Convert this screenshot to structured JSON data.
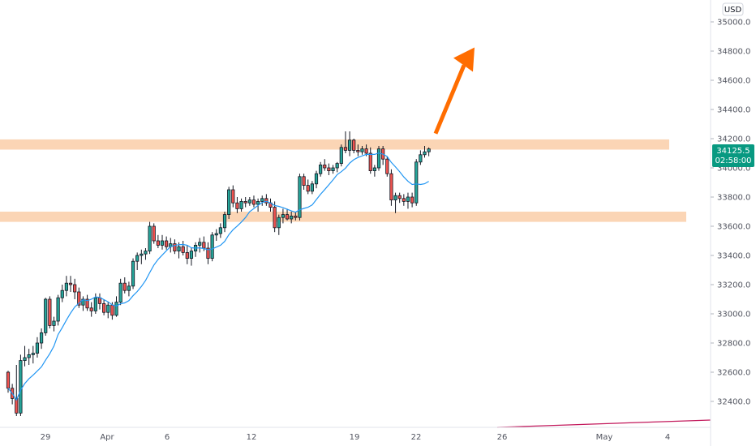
{
  "price_axis": {
    "currency": "USD",
    "ticks": [
      "35000.0",
      "34800.0",
      "34600.0",
      "34400.0",
      "34200.0",
      "34000.0",
      "33800.0",
      "33600.0",
      "33400.0",
      "33200.0",
      "33000.0",
      "32800.0",
      "32600.0",
      "32400.0"
    ],
    "last_price": "34125.5",
    "countdown": "02:58:00"
  },
  "time_axis": {
    "labels": [
      "29",
      "Apr",
      "6",
      "12",
      "19",
      "22",
      "26",
      "May",
      "4"
    ]
  },
  "colors": {
    "up": "#26a69a",
    "down": "#ef5350",
    "candle_stroke": "#131722",
    "ma_line": "#2196f3",
    "zone_fill": "#fbd5b5",
    "arrow": "#ff6d00",
    "price_badge": "#089981",
    "lower_line": "#c2185b"
  },
  "chart_data": {
    "type": "candlestick",
    "title": "",
    "ylim": [
      32250,
      35150
    ],
    "zones": [
      {
        "from": 34125,
        "to": 34195
      },
      {
        "from": 33630,
        "to": 33700
      }
    ],
    "projection_arrow": {
      "from_price": 34235,
      "to_price": 34825
    },
    "candles": [
      [
        32600,
        32610,
        32460,
        32490
      ],
      [
        32490,
        32520,
        32380,
        32420
      ],
      [
        32420,
        32650,
        32300,
        32320
      ],
      [
        32320,
        32720,
        32300,
        32680
      ],
      [
        32680,
        32780,
        32640,
        32700
      ],
      [
        32700,
        32760,
        32650,
        32720
      ],
      [
        32720,
        32780,
        32660,
        32730
      ],
      [
        32730,
        32840,
        32700,
        32800
      ],
      [
        32800,
        32900,
        32760,
        32870
      ],
      [
        32870,
        33110,
        32850,
        33100
      ],
      [
        33100,
        33120,
        32900,
        32920
      ],
      [
        32920,
        32980,
        32880,
        32950
      ],
      [
        32950,
        33130,
        32920,
        33110
      ],
      [
        33110,
        33200,
        33080,
        33160
      ],
      [
        33160,
        33260,
        33120,
        33210
      ],
      [
        33210,
        33260,
        33150,
        33200
      ],
      [
        33200,
        33240,
        33100,
        33150
      ],
      [
        33150,
        33180,
        33040,
        33060
      ],
      [
        33060,
        33120,
        33020,
        33100
      ],
      [
        33100,
        33130,
        33020,
        33040
      ],
      [
        33040,
        33080,
        32980,
        33020
      ],
      [
        33020,
        33140,
        33000,
        33110
      ],
      [
        33110,
        33140,
        33030,
        33070
      ],
      [
        33070,
        33100,
        32990,
        33010
      ],
      [
        33010,
        33080,
        32970,
        33060
      ],
      [
        33060,
        33080,
        32960,
        32990
      ],
      [
        32990,
        33120,
        32980,
        33080
      ],
      [
        33080,
        33240,
        33060,
        33210
      ],
      [
        33210,
        33250,
        33140,
        33160
      ],
      [
        33160,
        33220,
        33120,
        33190
      ],
      [
        33190,
        33380,
        33170,
        33360
      ],
      [
        33360,
        33420,
        33300,
        33400
      ],
      [
        33400,
        33440,
        33340,
        33410
      ],
      [
        33410,
        33450,
        33370,
        33430
      ],
      [
        33430,
        33630,
        33410,
        33600
      ],
      [
        33600,
        33620,
        33480,
        33500
      ],
      [
        33500,
        33540,
        33450,
        33470
      ],
      [
        33470,
        33540,
        33440,
        33500
      ],
      [
        33500,
        33530,
        33440,
        33460
      ],
      [
        33460,
        33520,
        33420,
        33480
      ],
      [
        33480,
        33510,
        33410,
        33430
      ],
      [
        33430,
        33490,
        33380,
        33460
      ],
      [
        33460,
        33500,
        33400,
        33420
      ],
      [
        33420,
        33470,
        33340,
        33380
      ],
      [
        33380,
        33450,
        33330,
        33430
      ],
      [
        33430,
        33490,
        33390,
        33470
      ],
      [
        33470,
        33520,
        33420,
        33490
      ],
      [
        33490,
        33530,
        33430,
        33450
      ],
      [
        33450,
        33490,
        33340,
        33380
      ],
      [
        33380,
        33560,
        33360,
        33540
      ],
      [
        33540,
        33580,
        33500,
        33550
      ],
      [
        33550,
        33620,
        33520,
        33590
      ],
      [
        33590,
        33700,
        33560,
        33680
      ],
      [
        33680,
        33870,
        33650,
        33850
      ],
      [
        33850,
        33880,
        33730,
        33760
      ],
      [
        33760,
        33800,
        33690,
        33720
      ],
      [
        33720,
        33790,
        33700,
        33770
      ],
      [
        33770,
        33800,
        33730,
        33760
      ],
      [
        33760,
        33800,
        33740,
        33780
      ],
      [
        33780,
        33810,
        33730,
        33750
      ],
      [
        33750,
        33790,
        33700,
        33770
      ],
      [
        33770,
        33810,
        33740,
        33790
      ],
      [
        33790,
        33820,
        33740,
        33760
      ],
      [
        33760,
        33790,
        33700,
        33730
      ],
      [
        33730,
        33770,
        33560,
        33590
      ],
      [
        33590,
        33680,
        33540,
        33660
      ],
      [
        33660,
        33720,
        33620,
        33680
      ],
      [
        33680,
        33720,
        33640,
        33650
      ],
      [
        33650,
        33700,
        33620,
        33670
      ],
      [
        33670,
        33700,
        33640,
        33660
      ],
      [
        33660,
        33960,
        33640,
        33940
      ],
      [
        33940,
        33960,
        33850,
        33880
      ],
      [
        33880,
        33920,
        33820,
        33840
      ],
      [
        33840,
        33910,
        33820,
        33890
      ],
      [
        33890,
        33980,
        33860,
        33960
      ],
      [
        33960,
        34040,
        33940,
        34020
      ],
      [
        34020,
        34060,
        33980,
        34000
      ],
      [
        34000,
        34030,
        33950,
        33980
      ],
      [
        33980,
        34020,
        33960,
        34000
      ],
      [
        34000,
        34040,
        33970,
        34030
      ],
      [
        34030,
        34160,
        34010,
        34140
      ],
      [
        34140,
        34250,
        34100,
        34120
      ],
      [
        34120,
        34250,
        34080,
        34190
      ],
      [
        34190,
        34200,
        34100,
        34120
      ],
      [
        34120,
        34160,
        34080,
        34110
      ],
      [
        34110,
        34150,
        34090,
        34130
      ],
      [
        34130,
        34160,
        34080,
        34100
      ],
      [
        34100,
        34140,
        33960,
        33980
      ],
      [
        33980,
        34020,
        33940,
        34000
      ],
      [
        34000,
        34150,
        33980,
        34130
      ],
      [
        34130,
        34150,
        34020,
        34060
      ],
      [
        34060,
        34080,
        33940,
        33960
      ],
      [
        33960,
        33990,
        33740,
        33780
      ],
      [
        33780,
        33830,
        33690,
        33810
      ],
      [
        33810,
        33830,
        33760,
        33790
      ],
      [
        33790,
        33820,
        33740,
        33770
      ],
      [
        33770,
        33830,
        33720,
        33800
      ],
      [
        33800,
        33830,
        33730,
        33760
      ],
      [
        33760,
        34060,
        33740,
        34040
      ],
      [
        34040,
        34120,
        34020,
        34090
      ],
      [
        34090,
        34150,
        34070,
        34110
      ],
      [
        34110,
        34140,
        34080,
        34130
      ]
    ]
  }
}
